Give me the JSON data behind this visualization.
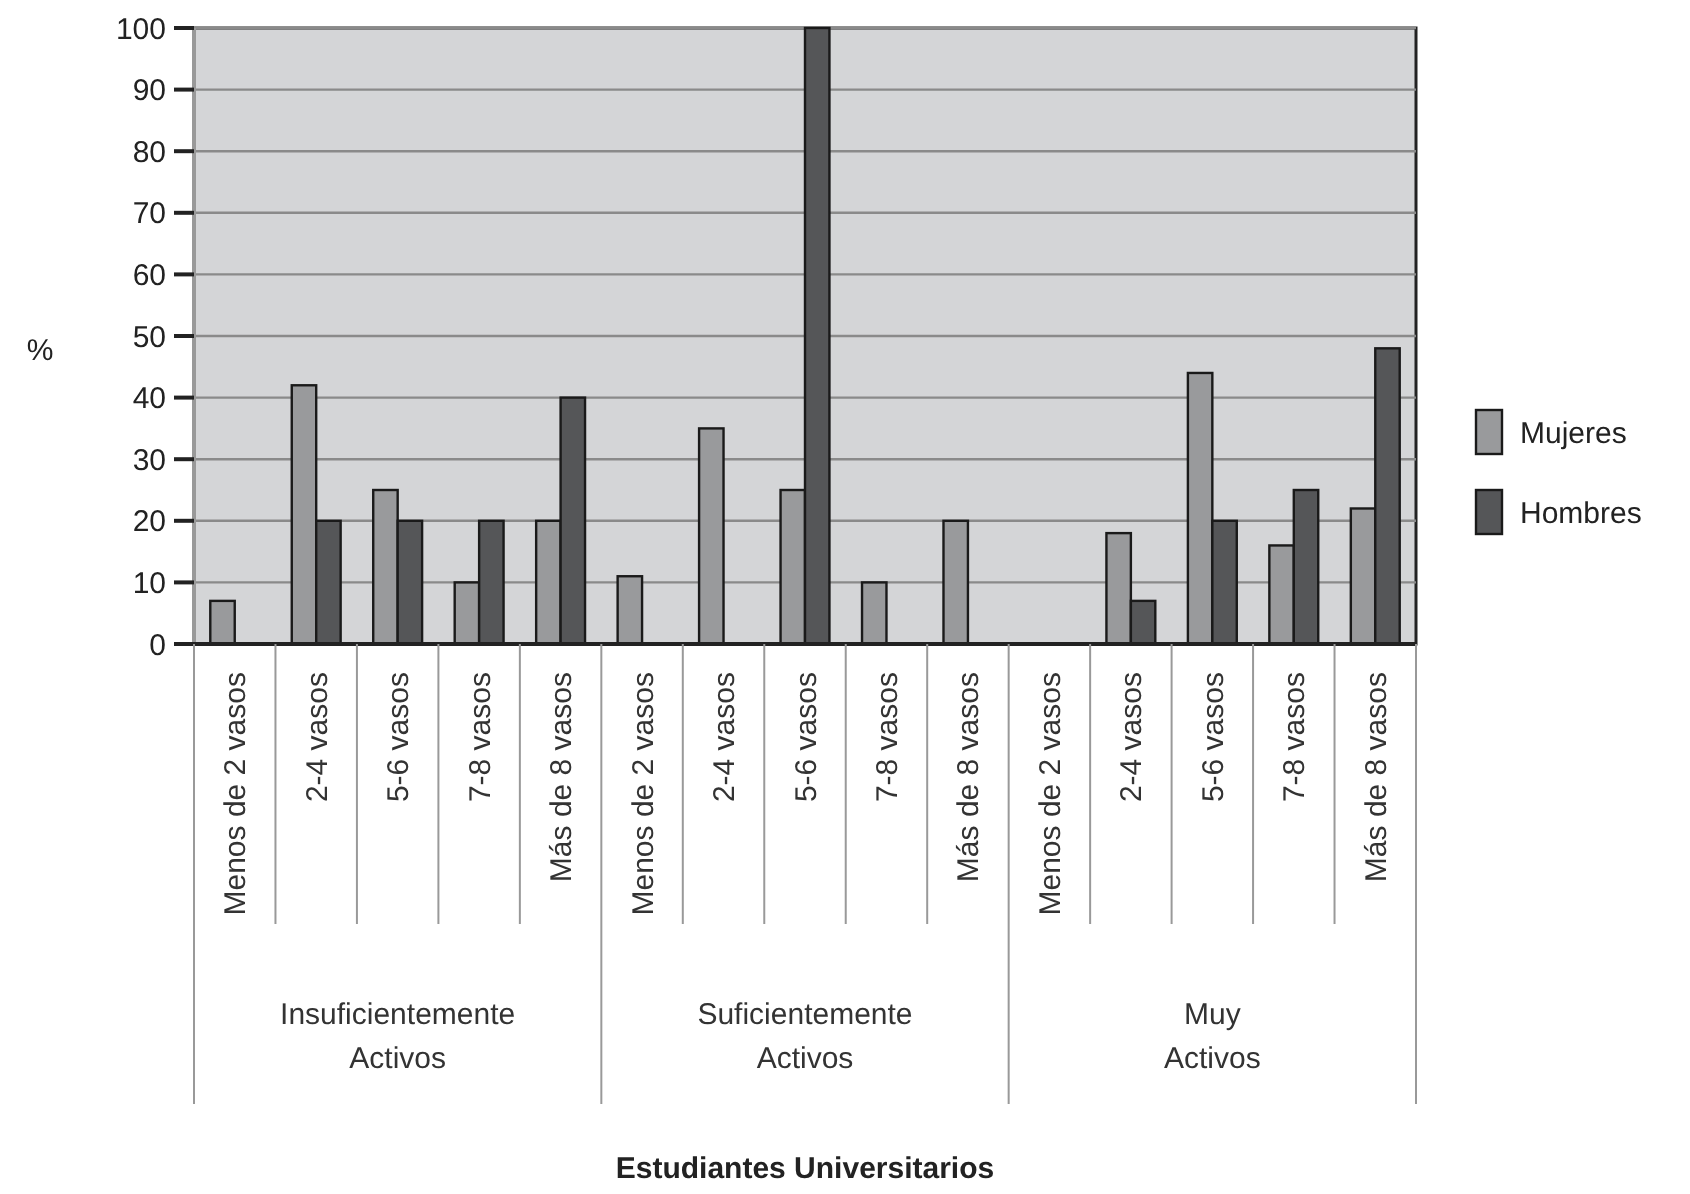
{
  "chart_data": {
    "type": "bar",
    "ylabel": "%",
    "categories": [
      "Menos de 2 vasos",
      "2-4 vasos",
      "5-6 vasos",
      "7-8 vasos",
      "Más de 8 vasos",
      "Menos de 2 vasos",
      "2-4 vasos",
      "5-6 vasos",
      "7-8 vasos",
      "Más de 8 vasos",
      "Menos de 2 vasos",
      "2-4 vasos",
      "5-6 vasos",
      "7-8 vasos",
      "Más de 8 vasos"
    ],
    "series": [
      {
        "name": "Mujeres",
        "color": "#999a9c",
        "values": [
          7,
          42,
          25,
          10,
          20,
          11,
          35,
          25,
          10,
          20,
          null,
          18,
          44,
          16,
          22
        ]
      },
      {
        "name": "Hombres",
        "color": "#555658",
        "values": [
          null,
          20,
          20,
          20,
          40,
          null,
          null,
          100,
          null,
          null,
          null,
          7,
          20,
          25,
          48
        ]
      }
    ],
    "annotations": [
      "Insuficientemente\nActivos",
      "Suficientemente\nActivos",
      "Muy\nActivos",
      "Estudiantes Universitarios"
    ],
    "ylim": [
      0,
      100
    ],
    "yticks": [
      0,
      10,
      20,
      30,
      40,
      50,
      60,
      70,
      80,
      90,
      100
    ],
    "grid": "y",
    "legend": "right"
  }
}
